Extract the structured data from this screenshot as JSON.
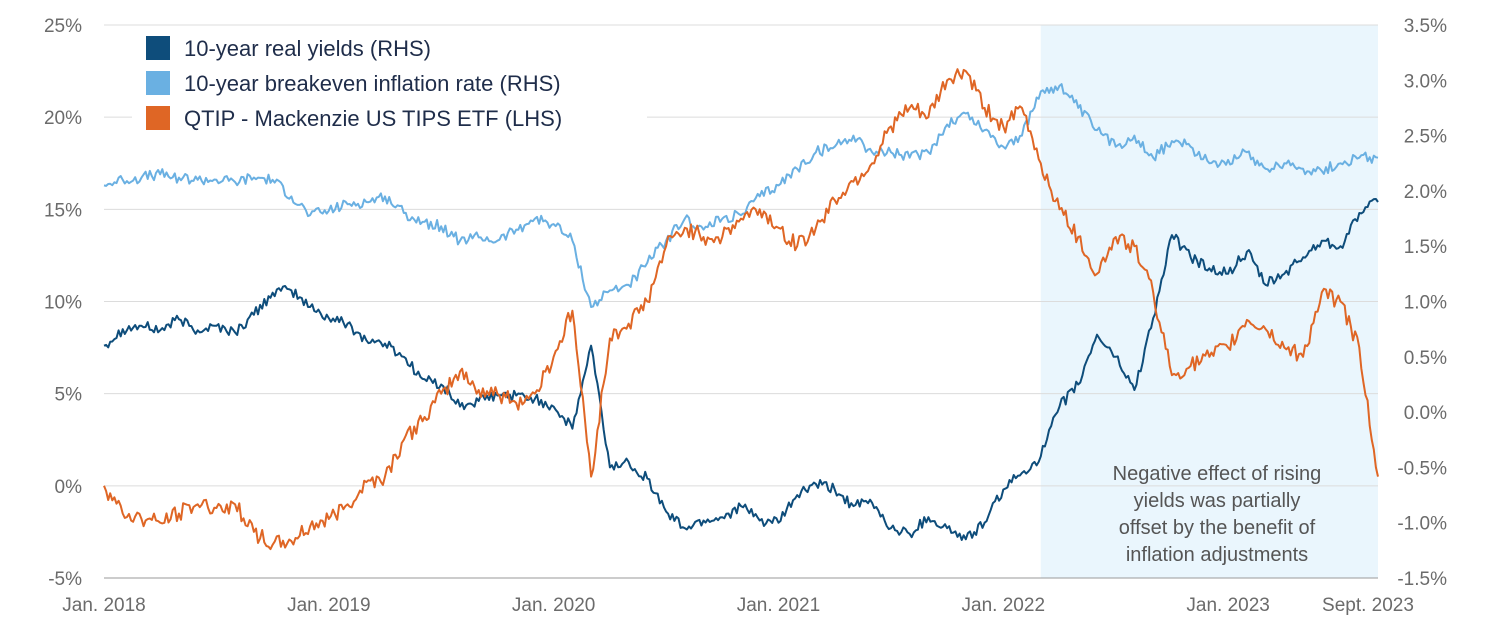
{
  "chart_data": {
    "type": "line",
    "left_axis": {
      "ylim": [
        -5,
        25
      ],
      "ticks": [
        -5,
        0,
        5,
        10,
        15,
        20,
        25
      ],
      "tick_labels": [
        "-5%",
        "0%",
        "5%",
        "10%",
        "15%",
        "20%",
        "25%"
      ]
    },
    "right_axis": {
      "ylim": [
        -1.5,
        3.5
      ],
      "ticks": [
        -1.5,
        -1.0,
        -0.5,
        0.0,
        0.5,
        1.0,
        1.5,
        2.0,
        2.5,
        3.0,
        3.5
      ],
      "tick_labels": [
        "-1.5%",
        "-1.0%",
        "-0.5%",
        "0.0%",
        "0.5%",
        "1.0%",
        "1.5%",
        "2.0%",
        "2.5%",
        "3.0%",
        "3.5%"
      ]
    },
    "x_axis": {
      "range": [
        "2018-01",
        "2023-09"
      ],
      "ticks": [
        "2018-01",
        "2019-01",
        "2020-01",
        "2021-01",
        "2022-01",
        "2023-01",
        "2023-09"
      ],
      "tick_labels": [
        "Jan. 2018",
        "Jan. 2019",
        "Jan. 2020",
        "Jan. 2021",
        "Jan. 2022",
        "Jan. 2023",
        "Sept. 2023"
      ]
    },
    "grid": "horizontal",
    "legend_position": "top-left",
    "shaded_region": {
      "start": "2022-03",
      "end": "2023-09",
      "color": "#eaf6fd"
    },
    "annotation": [
      "Negative effect of rising",
      "yields was partially",
      "offset by the benefit of",
      "inflation adjustments"
    ],
    "series": [
      {
        "name": "10-year real yields (RHS)",
        "axis": "right",
        "color": "#0e4d7b",
        "points": [
          [
            "2018-01",
            0.6
          ],
          [
            "2018-02",
            0.75
          ],
          [
            "2018-03",
            0.78
          ],
          [
            "2018-04",
            0.74
          ],
          [
            "2018-05",
            0.84
          ],
          [
            "2018-06",
            0.74
          ],
          [
            "2018-07",
            0.78
          ],
          [
            "2018-08",
            0.72
          ],
          [
            "2018-09",
            0.88
          ],
          [
            "2018-10",
            1.08
          ],
          [
            "2018-11",
            1.1
          ],
          [
            "2018-12",
            0.95
          ],
          [
            "2019-01",
            0.85
          ],
          [
            "2019-02",
            0.8
          ],
          [
            "2019-03",
            0.65
          ],
          [
            "2019-04",
            0.62
          ],
          [
            "2019-05",
            0.5
          ],
          [
            "2019-06",
            0.3
          ],
          [
            "2019-07",
            0.25
          ],
          [
            "2019-08",
            0.05
          ],
          [
            "2019-09",
            0.1
          ],
          [
            "2019-10",
            0.15
          ],
          [
            "2019-11",
            0.15
          ],
          [
            "2019-12",
            0.12
          ],
          [
            "2020-01",
            0.05
          ],
          [
            "2020-02",
            -0.15
          ],
          [
            "2020-03",
            0.6
          ],
          [
            "2020-04",
            -0.5
          ],
          [
            "2020-05",
            -0.45
          ],
          [
            "2020-06",
            -0.6
          ],
          [
            "2020-07",
            -0.9
          ],
          [
            "2020-08",
            -1.05
          ],
          [
            "2020-09",
            -0.98
          ],
          [
            "2020-10",
            -0.95
          ],
          [
            "2020-11",
            -0.85
          ],
          [
            "2020-12",
            -0.98
          ],
          [
            "2021-01",
            -1.0
          ],
          [
            "2021-02",
            -0.75
          ],
          [
            "2021-03",
            -0.65
          ],
          [
            "2021-04",
            -0.7
          ],
          [
            "2021-05",
            -0.85
          ],
          [
            "2021-06",
            -0.82
          ],
          [
            "2021-07",
            -1.05
          ],
          [
            "2021-08",
            -1.1
          ],
          [
            "2021-09",
            -0.95
          ],
          [
            "2021-10",
            -1.05
          ],
          [
            "2021-11",
            -1.15
          ],
          [
            "2021-12",
            -1.0
          ],
          [
            "2022-01",
            -0.7
          ],
          [
            "2022-02",
            -0.55
          ],
          [
            "2022-03",
            -0.4
          ],
          [
            "2022-04",
            0.05
          ],
          [
            "2022-05",
            0.25
          ],
          [
            "2022-06",
            0.7
          ],
          [
            "2022-07",
            0.5
          ],
          [
            "2022-08",
            0.2
          ],
          [
            "2022-09",
            0.85
          ],
          [
            "2022-10",
            1.6
          ],
          [
            "2022-11",
            1.4
          ],
          [
            "2022-12",
            1.3
          ],
          [
            "2023-01",
            1.25
          ],
          [
            "2023-02",
            1.45
          ],
          [
            "2023-03",
            1.15
          ],
          [
            "2023-04",
            1.25
          ],
          [
            "2023-05",
            1.4
          ],
          [
            "2023-06",
            1.55
          ],
          [
            "2023-07",
            1.5
          ],
          [
            "2023-08",
            1.8
          ],
          [
            "2023-09",
            1.9
          ]
        ]
      },
      {
        "name": "10-year breakeven inflation rate (RHS)",
        "axis": "right",
        "color": "#6ab0e2",
        "points": [
          [
            "2018-01",
            2.05
          ],
          [
            "2018-02",
            2.1
          ],
          [
            "2018-03",
            2.12
          ],
          [
            "2018-04",
            2.15
          ],
          [
            "2018-05",
            2.12
          ],
          [
            "2018-06",
            2.1
          ],
          [
            "2018-07",
            2.1
          ],
          [
            "2018-08",
            2.08
          ],
          [
            "2018-09",
            2.12
          ],
          [
            "2018-10",
            2.1
          ],
          [
            "2018-11",
            1.95
          ],
          [
            "2018-12",
            1.78
          ],
          [
            "2019-01",
            1.82
          ],
          [
            "2019-02",
            1.88
          ],
          [
            "2019-03",
            1.9
          ],
          [
            "2019-04",
            1.95
          ],
          [
            "2019-05",
            1.8
          ],
          [
            "2019-06",
            1.72
          ],
          [
            "2019-07",
            1.68
          ],
          [
            "2019-08",
            1.55
          ],
          [
            "2019-09",
            1.58
          ],
          [
            "2019-10",
            1.55
          ],
          [
            "2019-11",
            1.65
          ],
          [
            "2019-12",
            1.75
          ],
          [
            "2020-01",
            1.7
          ],
          [
            "2020-02",
            1.55
          ],
          [
            "2020-03",
            0.95
          ],
          [
            "2020-04",
            1.1
          ],
          [
            "2020-05",
            1.15
          ],
          [
            "2020-06",
            1.35
          ],
          [
            "2020-07",
            1.55
          ],
          [
            "2020-08",
            1.75
          ],
          [
            "2020-09",
            1.65
          ],
          [
            "2020-10",
            1.75
          ],
          [
            "2020-11",
            1.78
          ],
          [
            "2020-12",
            1.95
          ],
          [
            "2021-01",
            2.05
          ],
          [
            "2021-02",
            2.2
          ],
          [
            "2021-03",
            2.35
          ],
          [
            "2021-04",
            2.4
          ],
          [
            "2021-05",
            2.5
          ],
          [
            "2021-06",
            2.35
          ],
          [
            "2021-07",
            2.35
          ],
          [
            "2021-08",
            2.3
          ],
          [
            "2021-09",
            2.35
          ],
          [
            "2021-10",
            2.6
          ],
          [
            "2021-11",
            2.7
          ],
          [
            "2021-12",
            2.55
          ],
          [
            "2022-01",
            2.4
          ],
          [
            "2022-02",
            2.5
          ],
          [
            "2022-03",
            2.9
          ],
          [
            "2022-04",
            2.95
          ],
          [
            "2022-05",
            2.75
          ],
          [
            "2022-06",
            2.55
          ],
          [
            "2022-07",
            2.4
          ],
          [
            "2022-08",
            2.5
          ],
          [
            "2022-09",
            2.3
          ],
          [
            "2022-10",
            2.45
          ],
          [
            "2022-11",
            2.4
          ],
          [
            "2022-12",
            2.25
          ],
          [
            "2023-01",
            2.28
          ],
          [
            "2023-02",
            2.35
          ],
          [
            "2023-03",
            2.2
          ],
          [
            "2023-04",
            2.25
          ],
          [
            "2023-05",
            2.2
          ],
          [
            "2023-06",
            2.18
          ],
          [
            "2023-07",
            2.25
          ],
          [
            "2023-08",
            2.3
          ],
          [
            "2023-09",
            2.3
          ]
        ]
      },
      {
        "name": "QTIP - Mackenzie US TIPS ETF (LHS)",
        "axis": "left",
        "color": "#df6625",
        "points": [
          [
            "2018-01",
            0.0
          ],
          [
            "2018-02",
            -1.5
          ],
          [
            "2018-03",
            -1.8
          ],
          [
            "2018-04",
            -2.0
          ],
          [
            "2018-05",
            -1.5
          ],
          [
            "2018-06",
            -1.0
          ],
          [
            "2018-07",
            -1.2
          ],
          [
            "2018-08",
            -1.0
          ],
          [
            "2018-09",
            -2.5
          ],
          [
            "2018-10",
            -3.2
          ],
          [
            "2018-11",
            -3.0
          ],
          [
            "2018-12",
            -2.2
          ],
          [
            "2019-01",
            -1.8
          ],
          [
            "2019-02",
            -1.0
          ],
          [
            "2019-03",
            0.2
          ],
          [
            "2019-04",
            0.5
          ],
          [
            "2019-05",
            2.5
          ],
          [
            "2019-06",
            3.5
          ],
          [
            "2019-07",
            5.0
          ],
          [
            "2019-08",
            6.2
          ],
          [
            "2019-09",
            5.2
          ],
          [
            "2019-10",
            5.0
          ],
          [
            "2019-11",
            4.5
          ],
          [
            "2019-12",
            5.0
          ],
          [
            "2020-01",
            7.0
          ],
          [
            "2020-02",
            9.5
          ],
          [
            "2020-03",
            0.5
          ],
          [
            "2020-04",
            8.0
          ],
          [
            "2020-05",
            8.8
          ],
          [
            "2020-06",
            10.0
          ],
          [
            "2020-07",
            13.0
          ],
          [
            "2020-08",
            14.0
          ],
          [
            "2020-09",
            13.5
          ],
          [
            "2020-10",
            13.5
          ],
          [
            "2020-11",
            14.5
          ],
          [
            "2020-12",
            15.0
          ],
          [
            "2021-01",
            14.0
          ],
          [
            "2021-02",
            13.0
          ],
          [
            "2021-03",
            14.0
          ],
          [
            "2021-04",
            15.5
          ],
          [
            "2021-05",
            16.5
          ],
          [
            "2021-06",
            17.5
          ],
          [
            "2021-07",
            19.5
          ],
          [
            "2021-08",
            20.5
          ],
          [
            "2021-09",
            20.0
          ],
          [
            "2021-10",
            22.0
          ],
          [
            "2021-11",
            22.5
          ],
          [
            "2021-12",
            20.5
          ],
          [
            "2022-01",
            19.5
          ],
          [
            "2022-02",
            20.5
          ],
          [
            "2022-03",
            17.5
          ],
          [
            "2022-04",
            15.0
          ],
          [
            "2022-05",
            13.5
          ],
          [
            "2022-06",
            11.5
          ],
          [
            "2022-07",
            13.5
          ],
          [
            "2022-08",
            13.0
          ],
          [
            "2022-09",
            10.5
          ],
          [
            "2022-10",
            6.0
          ],
          [
            "2022-11",
            6.5
          ],
          [
            "2022-12",
            7.0
          ],
          [
            "2023-01",
            7.5
          ],
          [
            "2023-02",
            9.0
          ],
          [
            "2023-03",
            8.5
          ],
          [
            "2023-04",
            7.5
          ],
          [
            "2023-05",
            7.0
          ],
          [
            "2023-06",
            10.5
          ],
          [
            "2023-07",
            10.0
          ],
          [
            "2023-08",
            7.5
          ],
          [
            "2023-09",
            0.5
          ]
        ]
      }
    ]
  }
}
